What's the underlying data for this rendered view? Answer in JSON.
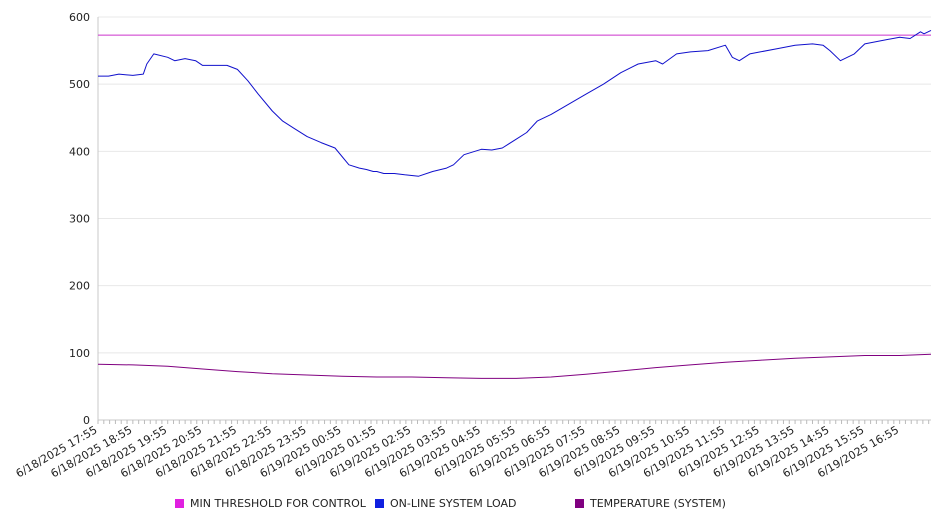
{
  "chart_data": {
    "type": "line",
    "ylim": [
      0,
      600
    ],
    "y_ticks": [
      0,
      100,
      200,
      300,
      400,
      500,
      600
    ],
    "grid": "horizontal",
    "legend_position": "bottom",
    "x_labels": [
      "6/18/2025 17:55",
      "6/18/2025 18:55",
      "6/18/2025 19:55",
      "6/18/2025 20:55",
      "6/18/2025 21:55",
      "6/18/2025 22:55",
      "6/18/2025 23:55",
      "6/19/2025 00:55",
      "6/19/2025 01:55",
      "6/19/2025 02:55",
      "6/19/2025 03:55",
      "6/19/2025 04:55",
      "6/19/2025 05:55",
      "6/19/2025 06:55",
      "6/19/2025 07:55",
      "6/19/2025 08:55",
      "6/19/2025 09:55",
      "6/19/2025 10:55",
      "6/19/2025 11:55",
      "6/19/2025 12:55",
      "6/19/2025 13:55",
      "6/19/2025 14:55",
      "6/19/2025 15:55",
      "6/19/2025 16:55"
    ],
    "x_range_hours": [
      0,
      23.9
    ],
    "series": [
      {
        "name": "MIN THRESHOLD FOR CONTROL",
        "color": "#cc33cc",
        "x": [
          0,
          23.9
        ],
        "values": [
          573,
          573
        ]
      },
      {
        "name": "ON-LINE SYSTEM LOAD",
        "color": "#1010cc",
        "x": [
          0,
          0.3,
          0.6,
          1.0,
          1.3,
          1.4,
          1.6,
          2.0,
          2.2,
          2.5,
          2.8,
          3.0,
          3.3,
          3.7,
          4.0,
          4.3,
          4.6,
          5.0,
          5.3,
          5.6,
          6.0,
          6.4,
          6.8,
          7.2,
          7.5,
          7.7,
          7.9,
          8.0,
          8.2,
          8.5,
          8.8,
          9.2,
          9.6,
          10.0,
          10.2,
          10.5,
          11.0,
          11.3,
          11.6,
          12.0,
          12.3,
          12.6,
          13.0,
          13.5,
          14.0,
          14.5,
          15.0,
          15.5,
          16.0,
          16.2,
          16.6,
          17.0,
          17.5,
          18.0,
          18.2,
          18.4,
          18.7,
          19.0,
          19.5,
          20.0,
          20.5,
          20.8,
          21.0,
          21.3,
          21.7,
          22.0,
          22.5,
          23.0,
          23.3,
          23.6,
          23.7,
          23.9
        ],
        "values": [
          512,
          512,
          515,
          513,
          515,
          530,
          545,
          540,
          535,
          538,
          535,
          528,
          528,
          528,
          522,
          505,
          485,
          460,
          445,
          435,
          422,
          413,
          405,
          380,
          375,
          373,
          370,
          370,
          367,
          367,
          365,
          363,
          370,
          375,
          380,
          395,
          403,
          402,
          405,
          418,
          428,
          445,
          455,
          470,
          485,
          500,
          517,
          530,
          535,
          530,
          545,
          548,
          550,
          558,
          540,
          535,
          545,
          548,
          553,
          558,
          560,
          558,
          550,
          535,
          545,
          560,
          565,
          570,
          568,
          578,
          575,
          580
        ]
      },
      {
        "name": "TEMPERATURE (SYSTEM)",
        "color": "#800080",
        "x": [
          0,
          1,
          2,
          3,
          4,
          5,
          6,
          7,
          8,
          9,
          10,
          11,
          12,
          13,
          14,
          15,
          16,
          17,
          18,
          19,
          20,
          21,
          22,
          23,
          23.9
        ],
        "values": [
          83,
          82,
          80,
          76,
          72,
          69,
          67,
          65,
          64,
          64,
          63,
          62,
          62,
          64,
          68,
          73,
          78,
          82,
          86,
          89,
          92,
          94,
          96,
          96,
          98
        ]
      }
    ]
  }
}
